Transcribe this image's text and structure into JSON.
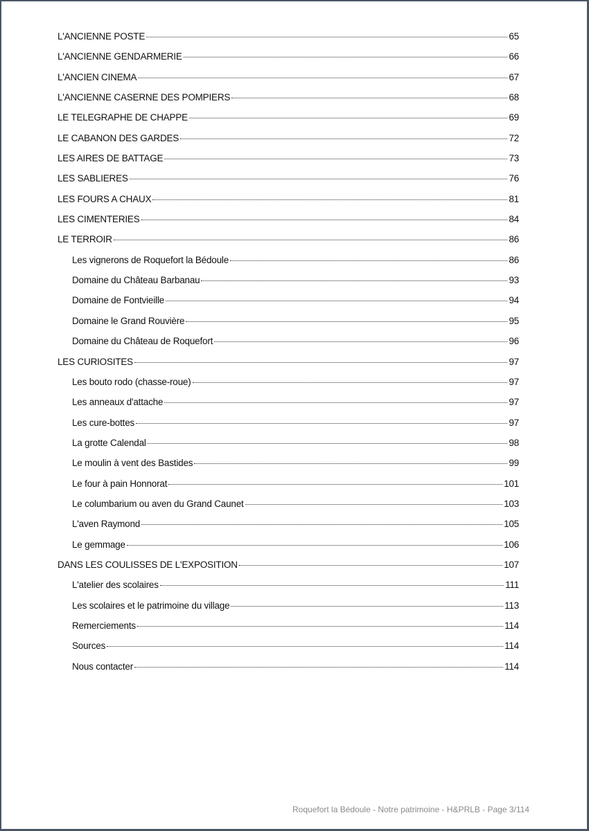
{
  "toc": [
    {
      "title": "L'ANCIENNE POSTE",
      "page": "65",
      "level": 1
    },
    {
      "title": "L'ANCIENNE GENDARMERIE",
      "page": "66",
      "level": 1
    },
    {
      "title": "L'ANCIEN CINEMA",
      "page": "67",
      "level": 1
    },
    {
      "title": "L'ANCIENNE CASERNE DES POMPIERS",
      "page": "68",
      "level": 1
    },
    {
      "title": "LE TELEGRAPHE DE CHAPPE",
      "page": "69",
      "level": 1
    },
    {
      "title": "LE CABANON DES GARDES",
      "page": "72",
      "level": 1
    },
    {
      "title": "LES AIRES DE BATTAGE",
      "page": "73",
      "level": 1
    },
    {
      "title": "LES SABLIERES",
      "page": "76",
      "level": 1
    },
    {
      "title": "LES FOURS A CHAUX",
      "page": "81",
      "level": 1
    },
    {
      "title": "LES CIMENTERIES",
      "page": "84",
      "level": 1
    },
    {
      "title": "LE TERROIR",
      "page": "86",
      "level": 1
    },
    {
      "title": "Les vignerons de Roquefort la Bédoule",
      "page": "86",
      "level": 2
    },
    {
      "title": "Domaine du Château Barbanau",
      "page": "93",
      "level": 2
    },
    {
      "title": "Domaine de Fontvieille",
      "page": "94",
      "level": 2
    },
    {
      "title": "Domaine le Grand Rouvière",
      "page": "95",
      "level": 2
    },
    {
      "title": "Domaine du Château de Roquefort",
      "page": "96",
      "level": 2
    },
    {
      "title": "LES CURIOSITES",
      "page": "97",
      "level": 1
    },
    {
      "title": "Les bouto rodo (chasse-roue)",
      "page": "97",
      "level": 2
    },
    {
      "title": "Les anneaux d'attache",
      "page": "97",
      "level": 2
    },
    {
      "title": "Les cure-bottes",
      "page": "97",
      "level": 2
    },
    {
      "title": "La grotte Calendal",
      "page": "98",
      "level": 2
    },
    {
      "title": "Le moulin à vent des Bastides",
      "page": "99",
      "level": 2
    },
    {
      "title": "Le four à pain Honnorat",
      "page": "101",
      "level": 2
    },
    {
      "title": "Le columbarium ou aven du Grand Caunet",
      "page": "103",
      "level": 2
    },
    {
      "title": "L'aven Raymond",
      "page": "105",
      "level": 2
    },
    {
      "title": "Le gemmage",
      "page": "106",
      "level": 2
    },
    {
      "title": "DANS LES COULISSES DE L'EXPOSITION",
      "page": "107",
      "level": 1
    },
    {
      "title": "L'atelier des scolaires",
      "page": "111",
      "level": 2
    },
    {
      "title": "Les scolaires et le patrimoine du village",
      "page": "113",
      "level": 2
    },
    {
      "title": "Remerciements",
      "page": "114",
      "level": 2
    },
    {
      "title": "Sources",
      "page": "114",
      "level": 2
    },
    {
      "title": "Nous contacter",
      "page": "114",
      "level": 2
    }
  ],
  "footer": "Roquefort la Bédoule - Notre patrimoine - H&PRLB - Page 3/114"
}
